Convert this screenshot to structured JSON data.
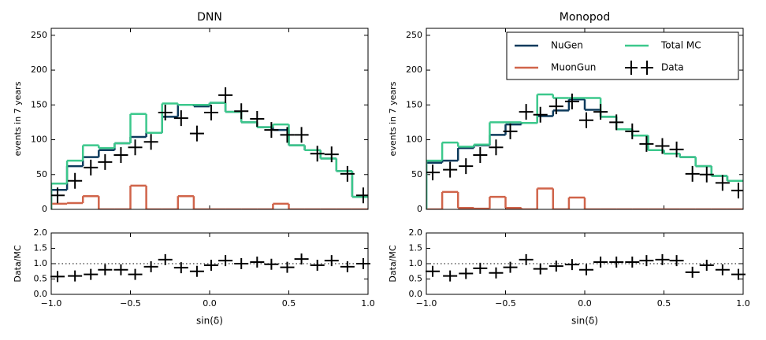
{
  "chart_data": [
    {
      "type": "histogram",
      "title": "DNN",
      "xlabel": "sin(δ)",
      "ylabel": "events in 7 years",
      "bins": [
        -1.0,
        -0.9,
        -0.8,
        -0.7,
        -0.6,
        -0.5,
        -0.4,
        -0.3,
        -0.2,
        -0.1,
        0.0,
        0.1,
        0.2,
        0.3,
        0.4,
        0.5,
        0.6,
        0.7,
        0.8,
        0.9,
        1.0
      ],
      "xlim": [
        -1,
        1
      ],
      "xticks": [
        {
          "value": -1,
          "label": "−1.0"
        },
        {
          "value": -0.5,
          "label": "−0.5"
        },
        {
          "value": 0,
          "label": "0.0"
        },
        {
          "value": 0.5,
          "label": "0.5"
        },
        {
          "value": 1,
          "label": "1.0"
        }
      ],
      "ylim": [
        0,
        260
      ],
      "yticks": [
        0,
        50,
        100,
        150,
        200,
        250
      ],
      "series": [
        {
          "color": "#0d3a5c",
          "values": [
            28,
            62,
            75,
            85,
            95,
            104,
            110,
            133,
            150,
            148,
            153,
            140,
            125,
            118,
            114,
            92,
            85,
            73,
            55,
            18
          ]
        },
        {
          "color": "#d0644a",
          "values": [
            8,
            9,
            19,
            0,
            0,
            34,
            0,
            0,
            19,
            0,
            0,
            0,
            0,
            0,
            8,
            0,
            0,
            0,
            0,
            0
          ]
        },
        {
          "color": "#3cc88c",
          "values": [
            37,
            70,
            92,
            88,
            95,
            137,
            110,
            152,
            150,
            150,
            153,
            140,
            125,
            118,
            122,
            92,
            85,
            73,
            55,
            18
          ]
        }
      ],
      "data": {
        "color": "#000000",
        "x": [
          -0.96,
          -0.85,
          -0.75,
          -0.66,
          -0.56,
          -0.47,
          -0.37,
          -0.28,
          -0.18,
          -0.08,
          0.01,
          0.1,
          0.2,
          0.3,
          0.39,
          0.49,
          0.58,
          0.68,
          0.77,
          0.87,
          0.97
        ],
        "values": [
          20,
          41,
          60,
          68,
          78,
          89,
          97,
          139,
          131,
          109,
          139,
          164,
          141,
          130,
          114,
          107,
          107,
          80,
          79,
          51,
          20
        ]
      },
      "ratio": {
        "ylabel": "Data/MC",
        "ylim": [
          0,
          2
        ],
        "hline": 1,
        "yticks": [
          {
            "value": 0,
            "label": "0.0"
          },
          {
            "value": 0.5,
            "label": "0.5"
          },
          {
            "value": 1,
            "label": "1.0"
          },
          {
            "value": 1.5,
            "label": "1.5"
          },
          {
            "value": 2,
            "label": "2.0"
          }
        ],
        "values": [
          0.58,
          0.6,
          0.65,
          0.8,
          0.8,
          0.65,
          0.9,
          1.13,
          0.87,
          0.75,
          0.95,
          1.1,
          1.0,
          1.05,
          0.98,
          0.88,
          1.15,
          0.95,
          1.1,
          0.9,
          1.0
        ]
      }
    },
    {
      "type": "histogram",
      "title": "Monopod",
      "xlabel": "sin(δ)",
      "ylabel": "events in 7 years",
      "legend": "upper right",
      "bins": [
        -1.0,
        -0.9,
        -0.8,
        -0.7,
        -0.6,
        -0.5,
        -0.4,
        -0.3,
        -0.2,
        -0.1,
        0.0,
        0.1,
        0.2,
        0.3,
        0.4,
        0.5,
        0.6,
        0.7,
        0.8,
        0.9,
        1.0
      ],
      "xlim": [
        -1,
        1
      ],
      "xticks": [
        {
          "value": -1,
          "label": "−1.0"
        },
        {
          "value": -0.5,
          "label": "−0.5"
        },
        {
          "value": 0,
          "label": "0.0"
        },
        {
          "value": 0.5,
          "label": "0.5"
        },
        {
          "value": 1,
          "label": "1.0"
        }
      ],
      "ylim": [
        0,
        260
      ],
      "yticks": [
        0,
        50,
        100,
        150,
        200,
        250
      ],
      "series": [
        {
          "name": "NuGen",
          "color": "#0d3a5c",
          "values": [
            67,
            70,
            88,
            92,
            107,
            122,
            124,
            134,
            142,
            158,
            143,
            133,
            115,
            106,
            85,
            80,
            75,
            62,
            48,
            41
          ]
        },
        {
          "name": "MuonGun",
          "color": "#d0644a",
          "values": [
            0,
            25,
            2,
            1,
            18,
            2,
            0,
            30,
            0,
            17,
            0,
            0,
            0,
            0,
            0,
            0,
            0,
            0,
            0,
            0
          ]
        },
        {
          "name": "Total MC",
          "color": "#3cc88c",
          "values": [
            70,
            96,
            90,
            93,
            125,
            125,
            124,
            165,
            160,
            160,
            160,
            133,
            115,
            106,
            85,
            80,
            75,
            62,
            48,
            41
          ]
        }
      ],
      "data": {
        "name": "Data",
        "color": "#000000",
        "x": [
          -0.96,
          -0.85,
          -0.75,
          -0.66,
          -0.56,
          -0.47,
          -0.37,
          -0.28,
          -0.18,
          -0.08,
          0.01,
          0.1,
          0.2,
          0.3,
          0.39,
          0.49,
          0.58,
          0.68,
          0.77,
          0.87,
          0.97
        ],
        "values": [
          53,
          57,
          62,
          78,
          89,
          112,
          140,
          136,
          148,
          155,
          128,
          140,
          125,
          112,
          94,
          91,
          86,
          51,
          50,
          38,
          27
        ]
      },
      "ratio": {
        "ylabel": "Data/MC",
        "ylim": [
          0,
          2
        ],
        "hline": 1,
        "yticks": [
          {
            "value": 0,
            "label": "0.0"
          },
          {
            "value": 0.5,
            "label": "0.5"
          },
          {
            "value": 1,
            "label": "1.0"
          },
          {
            "value": 1.5,
            "label": "1.5"
          },
          {
            "value": 2,
            "label": "2.0"
          }
        ],
        "values": [
          0.75,
          0.6,
          0.68,
          0.85,
          0.7,
          0.88,
          1.13,
          0.83,
          0.92,
          0.97,
          0.8,
          1.05,
          1.05,
          1.05,
          1.1,
          1.13,
          1.1,
          0.72,
          0.95,
          0.8,
          0.65
        ]
      }
    }
  ]
}
